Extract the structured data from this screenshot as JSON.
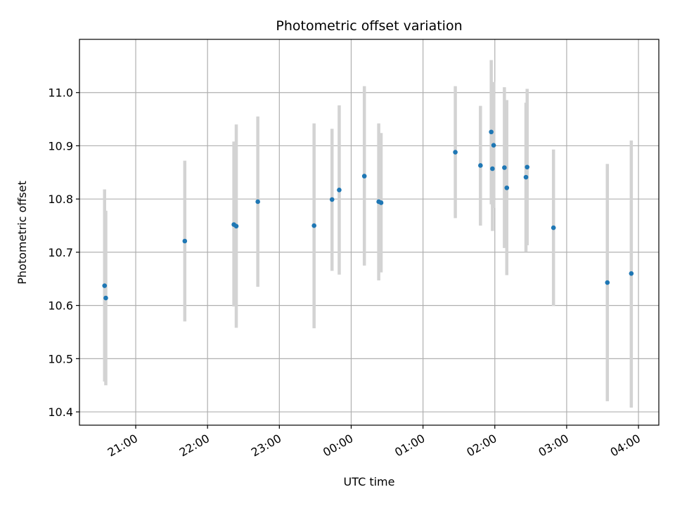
{
  "chart_data": {
    "type": "scatter",
    "title": "Photometric offset variation",
    "xlabel": "UTC time",
    "ylabel": "Photometric offset",
    "x_unit": "UTC time of night (clock time, ticks hourly)",
    "xlim": [
      "20:13",
      "04:17"
    ],
    "ylim": [
      10.375,
      11.1
    ],
    "x_ticks": [
      "21:00",
      "22:00",
      "23:00",
      "00:00",
      "01:00",
      "02:00",
      "03:00",
      "04:00"
    ],
    "y_ticks": [
      10.4,
      10.5,
      10.6,
      10.7,
      10.8,
      10.9,
      11.0
    ],
    "y_tick_labels": [
      "10.4",
      "10.5",
      "10.6",
      "10.7",
      "10.8",
      "10.9",
      "11.0"
    ],
    "grid": true,
    "marker_color": "#1f77b4",
    "errorbar_color": "#d3d3d3",
    "series": [
      {
        "points": [
          {
            "x": "20:34",
            "y": 10.637,
            "err_low": 10.457,
            "err_high": 10.818
          },
          {
            "x": "20:35",
            "y": 10.614,
            "err_low": 10.45,
            "err_high": 10.778
          },
          {
            "x": "21:41",
            "y": 10.721,
            "err_low": 10.57,
            "err_high": 10.872
          },
          {
            "x": "22:22",
            "y": 10.752,
            "err_low": 10.598,
            "err_high": 10.908
          },
          {
            "x": "22:24",
            "y": 10.749,
            "err_low": 10.558,
            "err_high": 10.94
          },
          {
            "x": "22:42",
            "y": 10.795,
            "err_low": 10.635,
            "err_high": 10.955
          },
          {
            "x": "23:29",
            "y": 10.75,
            "err_low": 10.557,
            "err_high": 10.942
          },
          {
            "x": "23:44",
            "y": 10.799,
            "err_low": 10.665,
            "err_high": 10.932
          },
          {
            "x": "23:50",
            "y": 10.817,
            "err_low": 10.658,
            "err_high": 10.976
          },
          {
            "x": "00:11",
            "y": 10.843,
            "err_low": 10.675,
            "err_high": 11.012
          },
          {
            "x": "00:23",
            "y": 10.795,
            "err_low": 10.647,
            "err_high": 10.942
          },
          {
            "x": "00:25",
            "y": 10.793,
            "err_low": 10.662,
            "err_high": 10.924
          },
          {
            "x": "01:27",
            "y": 10.888,
            "err_low": 10.764,
            "err_high": 11.012
          },
          {
            "x": "01:48",
            "y": 10.863,
            "err_low": 10.75,
            "err_high": 10.975
          },
          {
            "x": "01:57",
            "y": 10.926,
            "err_low": 10.79,
            "err_high": 11.061
          },
          {
            "x": "01:58",
            "y": 10.857,
            "err_low": 10.74,
            "err_high": 10.974
          },
          {
            "x": "01:59",
            "y": 10.901,
            "err_low": 10.783,
            "err_high": 11.02
          },
          {
            "x": "02:08",
            "y": 10.859,
            "err_low": 10.708,
            "err_high": 11.01
          },
          {
            "x": "02:10",
            "y": 10.821,
            "err_low": 10.657,
            "err_high": 10.986
          },
          {
            "x": "02:26",
            "y": 10.841,
            "err_low": 10.701,
            "err_high": 10.981
          },
          {
            "x": "02:27",
            "y": 10.86,
            "err_low": 10.713,
            "err_high": 11.007
          },
          {
            "x": "02:49",
            "y": 10.746,
            "err_low": 10.599,
            "err_high": 10.893
          },
          {
            "x": "03:34",
            "y": 10.643,
            "err_low": 10.42,
            "err_high": 10.866
          },
          {
            "x": "03:54",
            "y": 10.66,
            "err_low": 10.408,
            "err_high": 10.91
          }
        ]
      }
    ]
  }
}
